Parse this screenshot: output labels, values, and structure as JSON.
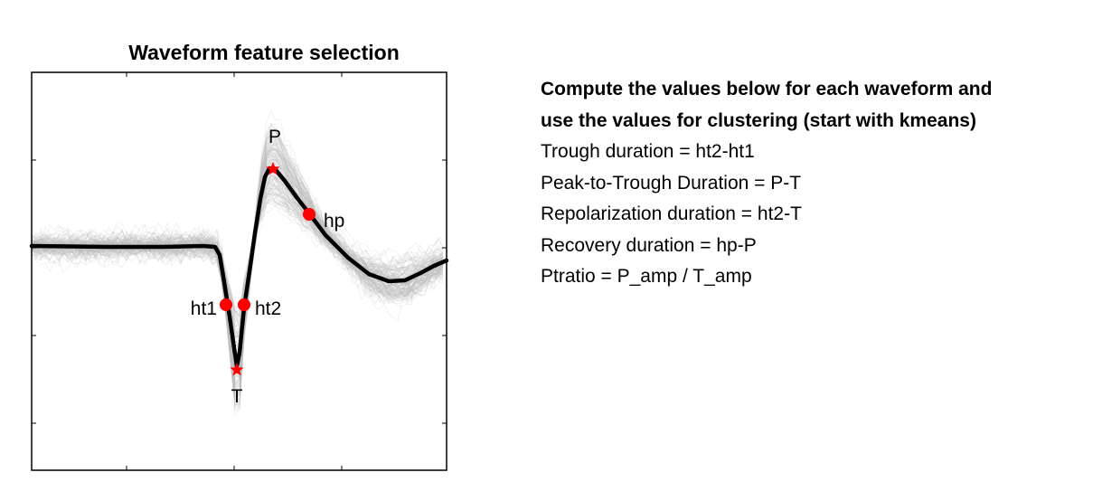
{
  "figure": {
    "title": "Waveform feature selection",
    "markers": {
      "P": "P",
      "T": "T",
      "hp": "hp",
      "ht1": "ht1",
      "ht2": "ht2"
    },
    "colors": {
      "mean_waveform": "#000000",
      "trace_waveforms": "#bdbdbd",
      "marker": "#ff0000"
    }
  },
  "notes": {
    "heading_line1": "Compute the values below for each waveform and",
    "heading_line2": "use the values for clustering (start with kmeans)",
    "items": [
      "Trough duration = ht2-ht1",
      "Peak-to-Trough Duration = P-T",
      "Repolarization duration = ht2-T",
      "Recovery duration = hp-P",
      "Ptratio = P_amp / T_amp"
    ]
  }
}
